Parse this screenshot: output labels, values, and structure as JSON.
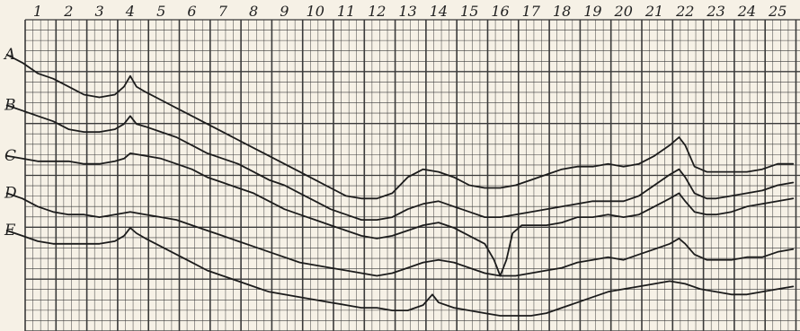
{
  "chart_data": {
    "type": "line",
    "grid": true,
    "legend": "none",
    "x_tick_labels": [
      "1",
      "2",
      "3",
      "4",
      "5",
      "6",
      "7",
      "8",
      "9",
      "10",
      "11",
      "12",
      "13",
      "14",
      "15",
      "16",
      "17",
      "18",
      "19",
      "20",
      "21",
      "22",
      "23",
      "24",
      "25"
    ],
    "xlim": [
      0.5,
      25.5
    ],
    "y_grid_levels": 30,
    "series": [
      {
        "name": "A",
        "points": [
          [
            0.0,
            0.99
          ],
          [
            0.5,
            0.96
          ],
          [
            1.0,
            0.92
          ],
          [
            1.5,
            0.9
          ],
          [
            2.0,
            0.87
          ],
          [
            2.5,
            0.84
          ],
          [
            3.0,
            0.83
          ],
          [
            3.5,
            0.84
          ],
          [
            3.8,
            0.87
          ],
          [
            4.0,
            0.91
          ],
          [
            4.2,
            0.87
          ],
          [
            4.5,
            0.85
          ],
          [
            5.0,
            0.82
          ],
          [
            5.5,
            0.79
          ],
          [
            6.0,
            0.76
          ],
          [
            6.5,
            0.73
          ],
          [
            7.0,
            0.7
          ],
          [
            7.5,
            0.67
          ],
          [
            8.0,
            0.64
          ],
          [
            8.5,
            0.61
          ],
          [
            9.0,
            0.58
          ],
          [
            9.5,
            0.55
          ],
          [
            10.0,
            0.52
          ],
          [
            10.5,
            0.49
          ],
          [
            11.0,
            0.46
          ],
          [
            11.5,
            0.45
          ],
          [
            12.0,
            0.45
          ],
          [
            12.5,
            0.47
          ],
          [
            13.0,
            0.53
          ],
          [
            13.5,
            0.56
          ],
          [
            14.0,
            0.55
          ],
          [
            14.5,
            0.53
          ],
          [
            15.0,
            0.5
          ],
          [
            15.5,
            0.49
          ],
          [
            16.0,
            0.49
          ],
          [
            16.5,
            0.5
          ],
          [
            17.0,
            0.52
          ],
          [
            17.5,
            0.54
          ],
          [
            18.0,
            0.56
          ],
          [
            18.5,
            0.57
          ],
          [
            19.0,
            0.57
          ],
          [
            19.5,
            0.58
          ],
          [
            20.0,
            0.57
          ],
          [
            20.5,
            0.58
          ],
          [
            21.0,
            0.61
          ],
          [
            21.5,
            0.65
          ],
          [
            21.8,
            0.68
          ],
          [
            22.0,
            0.65
          ],
          [
            22.3,
            0.57
          ],
          [
            22.7,
            0.55
          ],
          [
            23.0,
            0.55
          ],
          [
            23.5,
            0.55
          ],
          [
            24.0,
            0.55
          ],
          [
            24.5,
            0.56
          ],
          [
            25.0,
            0.58
          ],
          [
            25.5,
            0.58
          ]
        ]
      },
      {
        "name": "B",
        "points": [
          [
            0.0,
            0.8
          ],
          [
            0.5,
            0.78
          ],
          [
            1.0,
            0.76
          ],
          [
            1.5,
            0.74
          ],
          [
            2.0,
            0.71
          ],
          [
            2.5,
            0.7
          ],
          [
            3.0,
            0.7
          ],
          [
            3.5,
            0.71
          ],
          [
            3.8,
            0.73
          ],
          [
            4.0,
            0.76
          ],
          [
            4.2,
            0.73
          ],
          [
            4.5,
            0.72
          ],
          [
            5.0,
            0.7
          ],
          [
            5.5,
            0.68
          ],
          [
            6.0,
            0.65
          ],
          [
            6.5,
            0.62
          ],
          [
            7.0,
            0.6
          ],
          [
            7.5,
            0.58
          ],
          [
            8.0,
            0.55
          ],
          [
            8.5,
            0.52
          ],
          [
            9.0,
            0.5
          ],
          [
            9.5,
            0.47
          ],
          [
            10.0,
            0.44
          ],
          [
            10.5,
            0.41
          ],
          [
            11.0,
            0.39
          ],
          [
            11.5,
            0.37
          ],
          [
            12.0,
            0.37
          ],
          [
            12.5,
            0.38
          ],
          [
            13.0,
            0.41
          ],
          [
            13.5,
            0.43
          ],
          [
            14.0,
            0.44
          ],
          [
            14.5,
            0.42
          ],
          [
            15.0,
            0.4
          ],
          [
            15.5,
            0.38
          ],
          [
            16.0,
            0.38
          ],
          [
            16.5,
            0.39
          ],
          [
            17.0,
            0.4
          ],
          [
            17.5,
            0.41
          ],
          [
            18.0,
            0.42
          ],
          [
            18.5,
            0.43
          ],
          [
            19.0,
            0.44
          ],
          [
            19.5,
            0.44
          ],
          [
            20.0,
            0.44
          ],
          [
            20.5,
            0.46
          ],
          [
            21.0,
            0.5
          ],
          [
            21.5,
            0.54
          ],
          [
            21.8,
            0.56
          ],
          [
            22.0,
            0.53
          ],
          [
            22.3,
            0.47
          ],
          [
            22.7,
            0.45
          ],
          [
            23.0,
            0.45
          ],
          [
            23.5,
            0.46
          ],
          [
            24.0,
            0.47
          ],
          [
            24.5,
            0.48
          ],
          [
            25.0,
            0.5
          ],
          [
            25.5,
            0.51
          ]
        ]
      },
      {
        "name": "C",
        "points": [
          [
            0.0,
            0.61
          ],
          [
            0.5,
            0.6
          ],
          [
            1.0,
            0.59
          ],
          [
            1.5,
            0.59
          ],
          [
            2.0,
            0.59
          ],
          [
            2.5,
            0.58
          ],
          [
            3.0,
            0.58
          ],
          [
            3.5,
            0.59
          ],
          [
            3.8,
            0.6
          ],
          [
            4.0,
            0.62
          ],
          [
            4.5,
            0.61
          ],
          [
            5.0,
            0.6
          ],
          [
            5.5,
            0.58
          ],
          [
            6.0,
            0.56
          ],
          [
            6.5,
            0.53
          ],
          [
            7.0,
            0.51
          ],
          [
            7.5,
            0.49
          ],
          [
            8.0,
            0.47
          ],
          [
            8.5,
            0.44
          ],
          [
            9.0,
            0.41
          ],
          [
            9.5,
            0.39
          ],
          [
            10.0,
            0.37
          ],
          [
            10.5,
            0.35
          ],
          [
            11.0,
            0.33
          ],
          [
            11.5,
            0.31
          ],
          [
            12.0,
            0.3
          ],
          [
            12.5,
            0.31
          ],
          [
            13.0,
            0.33
          ],
          [
            13.5,
            0.35
          ],
          [
            14.0,
            0.36
          ],
          [
            14.5,
            0.34
          ],
          [
            15.0,
            0.31
          ],
          [
            15.5,
            0.28
          ],
          [
            15.8,
            0.22
          ],
          [
            16.0,
            0.16
          ],
          [
            16.2,
            0.22
          ],
          [
            16.4,
            0.32
          ],
          [
            16.7,
            0.35
          ],
          [
            17.0,
            0.35
          ],
          [
            17.5,
            0.35
          ],
          [
            18.0,
            0.36
          ],
          [
            18.5,
            0.38
          ],
          [
            19.0,
            0.38
          ],
          [
            19.5,
            0.39
          ],
          [
            20.0,
            0.38
          ],
          [
            20.5,
            0.39
          ],
          [
            21.0,
            0.42
          ],
          [
            21.5,
            0.45
          ],
          [
            21.8,
            0.47
          ],
          [
            22.0,
            0.44
          ],
          [
            22.3,
            0.4
          ],
          [
            22.7,
            0.39
          ],
          [
            23.0,
            0.39
          ],
          [
            23.5,
            0.4
          ],
          [
            24.0,
            0.42
          ],
          [
            24.5,
            0.43
          ],
          [
            25.0,
            0.44
          ],
          [
            25.5,
            0.45
          ]
        ]
      },
      {
        "name": "D",
        "points": [
          [
            0.0,
            0.47
          ],
          [
            0.5,
            0.45
          ],
          [
            1.0,
            0.42
          ],
          [
            1.5,
            0.4
          ],
          [
            2.0,
            0.39
          ],
          [
            2.5,
            0.39
          ],
          [
            3.0,
            0.38
          ],
          [
            3.5,
            0.39
          ],
          [
            4.0,
            0.4
          ],
          [
            4.5,
            0.39
          ],
          [
            5.0,
            0.38
          ],
          [
            5.5,
            0.37
          ],
          [
            6.0,
            0.35
          ],
          [
            6.5,
            0.33
          ],
          [
            7.0,
            0.31
          ],
          [
            7.5,
            0.29
          ],
          [
            8.0,
            0.27
          ],
          [
            8.5,
            0.25
          ],
          [
            9.0,
            0.23
          ],
          [
            9.5,
            0.21
          ],
          [
            10.0,
            0.2
          ],
          [
            10.5,
            0.19
          ],
          [
            11.0,
            0.18
          ],
          [
            11.5,
            0.17
          ],
          [
            12.0,
            0.16
          ],
          [
            12.5,
            0.17
          ],
          [
            13.0,
            0.19
          ],
          [
            13.5,
            0.21
          ],
          [
            14.0,
            0.22
          ],
          [
            14.5,
            0.21
          ],
          [
            15.0,
            0.19
          ],
          [
            15.5,
            0.17
          ],
          [
            16.0,
            0.16
          ],
          [
            16.5,
            0.16
          ],
          [
            17.0,
            0.17
          ],
          [
            17.5,
            0.18
          ],
          [
            18.0,
            0.19
          ],
          [
            18.5,
            0.21
          ],
          [
            19.0,
            0.22
          ],
          [
            19.5,
            0.23
          ],
          [
            20.0,
            0.22
          ],
          [
            20.5,
            0.24
          ],
          [
            21.0,
            0.26
          ],
          [
            21.5,
            0.28
          ],
          [
            21.8,
            0.3
          ],
          [
            22.0,
            0.28
          ],
          [
            22.3,
            0.24
          ],
          [
            22.7,
            0.22
          ],
          [
            23.0,
            0.22
          ],
          [
            23.5,
            0.22
          ],
          [
            24.0,
            0.23
          ],
          [
            24.5,
            0.23
          ],
          [
            25.0,
            0.25
          ],
          [
            25.5,
            0.26
          ]
        ]
      },
      {
        "name": "E",
        "points": [
          [
            0.0,
            0.33
          ],
          [
            0.5,
            0.31
          ],
          [
            1.0,
            0.29
          ],
          [
            1.5,
            0.28
          ],
          [
            2.0,
            0.28
          ],
          [
            2.5,
            0.28
          ],
          [
            3.0,
            0.28
          ],
          [
            3.5,
            0.29
          ],
          [
            3.8,
            0.31
          ],
          [
            4.0,
            0.34
          ],
          [
            4.2,
            0.32
          ],
          [
            4.5,
            0.3
          ],
          [
            5.0,
            0.27
          ],
          [
            5.5,
            0.24
          ],
          [
            6.0,
            0.21
          ],
          [
            6.5,
            0.18
          ],
          [
            7.0,
            0.16
          ],
          [
            7.5,
            0.14
          ],
          [
            8.0,
            0.12
          ],
          [
            8.5,
            0.1
          ],
          [
            9.0,
            0.09
          ],
          [
            9.5,
            0.08
          ],
          [
            10.0,
            0.07
          ],
          [
            10.5,
            0.06
          ],
          [
            11.0,
            0.05
          ],
          [
            11.5,
            0.04
          ],
          [
            12.0,
            0.04
          ],
          [
            12.5,
            0.03
          ],
          [
            13.0,
            0.03
          ],
          [
            13.5,
            0.05
          ],
          [
            13.8,
            0.09
          ],
          [
            14.0,
            0.06
          ],
          [
            14.5,
            0.04
          ],
          [
            15.0,
            0.03
          ],
          [
            15.5,
            0.02
          ],
          [
            16.0,
            0.01
          ],
          [
            16.5,
            0.01
          ],
          [
            17.0,
            0.01
          ],
          [
            17.5,
            0.02
          ],
          [
            18.0,
            0.04
          ],
          [
            18.5,
            0.06
          ],
          [
            19.0,
            0.08
          ],
          [
            19.5,
            0.1
          ],
          [
            20.0,
            0.11
          ],
          [
            20.5,
            0.12
          ],
          [
            21.0,
            0.13
          ],
          [
            21.5,
            0.14
          ],
          [
            22.0,
            0.13
          ],
          [
            22.5,
            0.11
          ],
          [
            23.0,
            0.1
          ],
          [
            23.5,
            0.09
          ],
          [
            24.0,
            0.09
          ],
          [
            24.5,
            0.1
          ],
          [
            25.0,
            0.11
          ],
          [
            25.5,
            0.12
          ]
        ]
      }
    ]
  }
}
